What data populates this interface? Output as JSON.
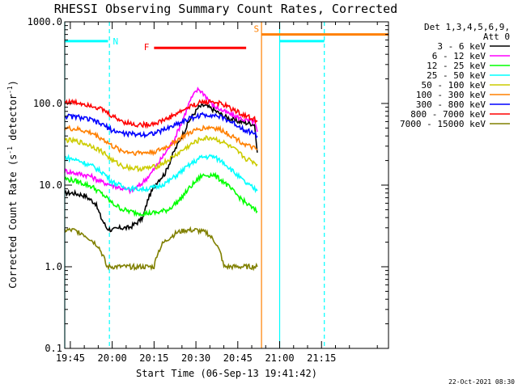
{
  "chart_data": {
    "type": "line",
    "title": "RHESSI Observing Summary Count Rates, Corrected",
    "xlabel": "Start Time (06-Sep-13 19:41:42)",
    "ylabel": "Corrected Count Rate (s",
    "ylabel_sup1": "-1",
    "ylabel_mid": " detector",
    "ylabel_sup2": "-1",
    "ylabel_end": ")",
    "yscale": "log",
    "ylim": [
      0.1,
      1000
    ],
    "xlim_min": [
      1183,
      1299
    ],
    "x_ticks": [
      {
        "min": 1185,
        "label": "19:45"
      },
      {
        "min": 1200,
        "label": "20:00"
      },
      {
        "min": 1215,
        "label": "20:15"
      },
      {
        "min": 1230,
        "label": "20:30"
      },
      {
        "min": 1245,
        "label": "20:45"
      },
      {
        "min": 1260,
        "label": "21:00"
      },
      {
        "min": 1275,
        "label": "21:15"
      }
    ],
    "y_ticks": [
      {
        "value": 0.1,
        "label": "0.1"
      },
      {
        "value": 1,
        "label": "1.0"
      },
      {
        "value": 10,
        "label": "10.0"
      },
      {
        "value": 100,
        "label": "100.0"
      },
      {
        "value": 1000,
        "label": "1000.0"
      }
    ],
    "legend": {
      "header1": "Det 1,3,4,5,6,9,",
      "header2": "Att 0",
      "placement": "right"
    },
    "series": [
      {
        "name": "3 - 6 keV",
        "color": "#000000",
        "x": [
          1183,
          1186,
          1190,
          1194,
          1196,
          1198,
          1200,
          1203,
          1206,
          1209,
          1211,
          1213,
          1216,
          1219,
          1222,
          1225,
          1228,
          1231,
          1233,
          1236,
          1240,
          1244,
          1248,
          1251,
          1252
        ],
        "y": [
          8,
          8,
          7.5,
          6,
          4,
          3,
          2.8,
          3,
          3,
          3.5,
          4,
          7,
          11,
          14,
          25,
          40,
          65,
          90,
          95,
          85,
          70,
          62,
          58,
          56,
          25
        ]
      },
      {
        "name": "6 - 12 keV",
        "color": "#ff00ff",
        "x": [
          1183,
          1187,
          1192,
          1196,
          1200,
          1204,
          1207,
          1210,
          1214,
          1218,
          1222,
          1225,
          1228,
          1230,
          1231,
          1233,
          1236,
          1240,
          1244,
          1248,
          1251,
          1252
        ],
        "y": [
          15,
          14,
          13,
          11,
          10,
          9,
          8.5,
          10,
          14,
          22,
          35,
          60,
          110,
          140,
          150,
          130,
          95,
          80,
          70,
          62,
          60,
          45
        ]
      },
      {
        "name": "12 - 25 keV",
        "color": "#00ff00",
        "x": [
          1183,
          1188,
          1193,
          1197,
          1200,
          1204,
          1208,
          1212,
          1216,
          1220,
          1224,
          1228,
          1232,
          1236,
          1240,
          1244,
          1248,
          1251,
          1252
        ],
        "y": [
          12,
          11,
          9.5,
          7.5,
          6,
          5,
          4.6,
          4.5,
          4.6,
          5,
          6.5,
          9.5,
          13,
          13.5,
          11,
          8,
          6,
          5,
          4.8
        ]
      },
      {
        "name": "25 - 50 keV",
        "color": "#00ffff",
        "x": [
          1183,
          1188,
          1193,
          1197,
          1200,
          1204,
          1208,
          1212,
          1216,
          1220,
          1224,
          1228,
          1232,
          1236,
          1240,
          1244,
          1248,
          1251,
          1252
        ],
        "y": [
          22,
          20,
          17,
          14,
          11,
          9.5,
          9,
          9,
          9.5,
          11,
          14,
          18,
          22,
          22.5,
          19,
          14,
          10.5,
          9,
          8.5
        ]
      },
      {
        "name": "50 - 100 keV",
        "color": "#cccc00",
        "x": [
          1183,
          1188,
          1193,
          1197,
          1200,
          1204,
          1208,
          1212,
          1216,
          1220,
          1224,
          1228,
          1232,
          1236,
          1240,
          1244,
          1248,
          1251,
          1252
        ],
        "y": [
          36,
          34,
          30,
          25,
          20,
          17,
          16,
          16,
          17,
          20,
          25,
          31,
          37,
          38,
          33,
          27,
          21,
          19,
          18
        ]
      },
      {
        "name": "100 - 300 keV",
        "color": "#ff8000",
        "x": [
          1183,
          1188,
          1193,
          1197,
          1200,
          1204,
          1208,
          1212,
          1216,
          1220,
          1224,
          1228,
          1232,
          1236,
          1240,
          1244,
          1248,
          1251,
          1252
        ],
        "y": [
          50,
          48,
          43,
          36,
          30,
          26,
          25,
          25,
          26,
          30,
          37,
          44,
          50,
          51,
          46,
          38,
          31,
          28,
          27
        ]
      },
      {
        "name": "300 - 800 keV",
        "color": "#0000ff",
        "x": [
          1183,
          1188,
          1193,
          1197,
          1200,
          1204,
          1208,
          1212,
          1216,
          1220,
          1224,
          1228,
          1232,
          1236,
          1240,
          1244,
          1248,
          1251,
          1252
        ],
        "y": [
          70,
          68,
          62,
          54,
          47,
          43,
          42,
          42,
          44,
          50,
          58,
          66,
          72,
          73,
          66,
          56,
          47,
          43,
          40
        ]
      },
      {
        "name": "800 - 7000 keV",
        "color": "#ff0000",
        "x": [
          1183,
          1188,
          1193,
          1197,
          1200,
          1204,
          1208,
          1212,
          1216,
          1220,
          1224,
          1228,
          1232,
          1236,
          1240,
          1244,
          1248,
          1251,
          1252
        ],
        "y": [
          105,
          102,
          95,
          82,
          70,
          60,
          55,
          55,
          58,
          66,
          78,
          92,
          104,
          106,
          96,
          82,
          70,
          64,
          60
        ]
      },
      {
        "name": "7000 - 15000 keV",
        "color": "#808000",
        "x": [
          1183,
          1186,
          1189,
          1192,
          1195,
          1197,
          1198,
          1199,
          1200,
          1205,
          1210,
          1215,
          1216,
          1218,
          1220,
          1223,
          1226,
          1230,
          1234,
          1237,
          1239,
          1240,
          1241,
          1245,
          1250,
          1252
        ],
        "y": [
          2.8,
          2.8,
          2.6,
          2.2,
          1.8,
          1.3,
          1.0,
          1.0,
          1.0,
          1.0,
          1.0,
          1.0,
          1.4,
          1.9,
          2.2,
          2.6,
          2.8,
          2.8,
          2.6,
          2.0,
          1.4,
          1.0,
          1.0,
          1.0,
          1.0,
          1.0
        ]
      }
    ],
    "annotations": [
      {
        "label": "N",
        "color": "#00ffff"
      },
      {
        "label": "F",
        "color": "#ff0000"
      },
      {
        "label": "S",
        "color": "#ff8000"
      }
    ],
    "intervals": [
      {
        "label": "N",
        "color": "#00ffff",
        "x0": 1183,
        "x1": 1198.5,
        "y": 580
      },
      {
        "label": "F",
        "color": "#ff0000",
        "x0": 1215,
        "x1": 1248,
        "y": 480
      },
      {
        "label": "S",
        "color": "#ff8000",
        "x0": 1253.5,
        "x1": 1299,
        "y": 700
      },
      {
        "label": "",
        "color": "#00ffff",
        "x0": 1260,
        "x1": 1276,
        "y": 580
      }
    ],
    "vertical_lines": [
      {
        "x": 1183,
        "color": "#00ffff",
        "dash": false
      },
      {
        "x": 1199,
        "color": "#00ffff",
        "dash": true
      },
      {
        "x": 1253.5,
        "color": "#ff8000",
        "dash": false
      },
      {
        "x": 1260,
        "color": "#00ffff",
        "dash": false
      },
      {
        "x": 1276,
        "color": "#00ffff",
        "dash": true
      }
    ]
  },
  "footer": {
    "date_stamp": "22-Oct-2021 08:30"
  }
}
